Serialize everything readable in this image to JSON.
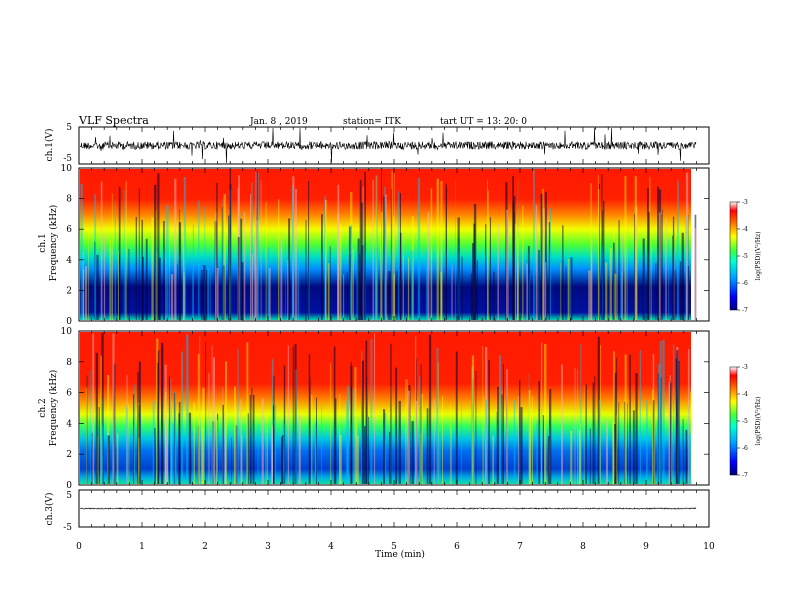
{
  "header": {
    "title": "VLF Spectra",
    "date": "Jan. 8 , 2019",
    "station": "station= ITK",
    "start_time": "tart UT = 13: 20: 0"
  },
  "chart_data": [
    {
      "type": "line",
      "panel": "ch1-waveform",
      "ylabel": "ch.1(V)",
      "ylim": [
        -5,
        5
      ],
      "yticks": [
        "5",
        "-5"
      ],
      "xlim": [
        0,
        10
      ],
      "x_end": 9.8,
      "baseline": 0,
      "color": "#000000"
    },
    {
      "type": "heatmap",
      "panel": "ch1-spectrogram",
      "ylabel": "ch.1\nFrequency (kHz)",
      "ylim": [
        0,
        10
      ],
      "yticks": [
        "0",
        "2",
        "4",
        "6",
        "8",
        "10"
      ],
      "xlim": [
        0,
        10
      ],
      "x_end": 9.8,
      "colorbar": {
        "label": "log(PSD)(V²/Hz)",
        "ticks": [
          "-3",
          "-4",
          "-5",
          "-6",
          "-7"
        ],
        "range": [
          -7,
          -3
        ]
      }
    },
    {
      "type": "heatmap",
      "panel": "ch2-spectrogram",
      "ylabel": "ch.2\nFrequency (kHz)",
      "ylim": [
        0,
        10
      ],
      "yticks": [
        "0",
        "2",
        "4",
        "6",
        "8",
        "10"
      ],
      "xlim": [
        0,
        10
      ],
      "x_end": 9.8,
      "colorbar": {
        "label": "log(PSD)(V²/Hz)",
        "ticks": [
          "-3",
          "-4",
          "-5",
          "-6",
          "-7"
        ],
        "range": [
          -7,
          -3
        ]
      }
    },
    {
      "type": "line",
      "panel": "ch3-waveform",
      "ylabel": "ch.3(V)",
      "ylim": [
        -5,
        5
      ],
      "yticks": [
        "5",
        "-5"
      ],
      "xlim": [
        0,
        10
      ],
      "x_end": 9.8,
      "baseline": 0,
      "color": "#000000"
    }
  ],
  "xaxis": {
    "label": "Time (min)",
    "ticks": [
      "0",
      "1",
      "2",
      "3",
      "4",
      "5",
      "6",
      "7",
      "8",
      "9",
      "10"
    ]
  }
}
